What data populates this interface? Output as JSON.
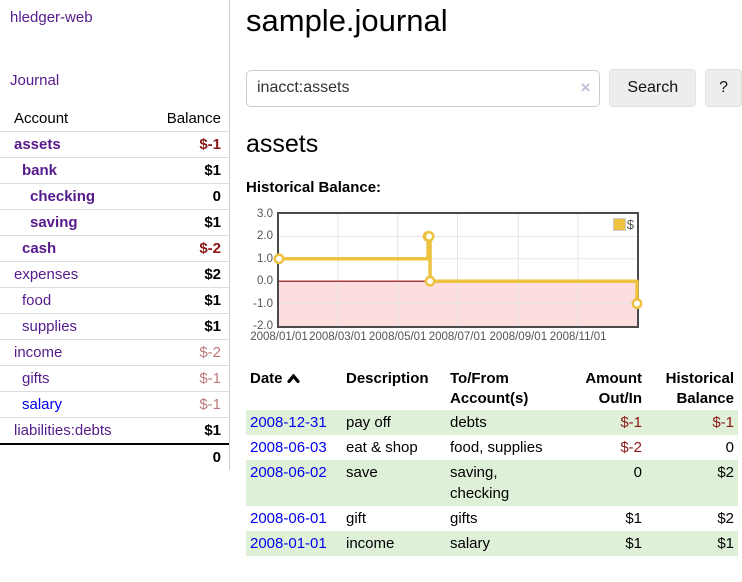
{
  "colors": {
    "link_visited_purple": "#551a8b",
    "link_blue": "#0000ee",
    "negative_strong": "#8b1717",
    "negative_light": "#bd7b7b",
    "row_green": "#dff0d8",
    "series_gold": "#edc240"
  },
  "sidebar": {
    "app_title": "hledger-web",
    "journal_link": "Journal",
    "account_header": "Account",
    "balance_header": "Balance",
    "accounts": [
      {
        "name": "assets",
        "indent": 1,
        "bold": true,
        "blue": false,
        "balance": "$-1",
        "balance_style": "neg"
      },
      {
        "name": "bank",
        "indent": 2,
        "bold": true,
        "blue": false,
        "balance": "$1",
        "balance_style": "pos"
      },
      {
        "name": "checking",
        "indent": 3,
        "bold": true,
        "blue": false,
        "balance": "0",
        "balance_style": "pos"
      },
      {
        "name": "saving",
        "indent": 3,
        "bold": true,
        "blue": false,
        "balance": "$1",
        "balance_style": "pos"
      },
      {
        "name": "cash",
        "indent": 2,
        "bold": true,
        "blue": false,
        "balance": "$-2",
        "balance_style": "neg"
      },
      {
        "name": "expenses",
        "indent": 1,
        "bold": false,
        "blue": false,
        "balance": "$2",
        "balance_style": "pos"
      },
      {
        "name": "food",
        "indent": 2,
        "bold": false,
        "blue": false,
        "balance": "$1",
        "balance_style": "pos"
      },
      {
        "name": "supplies",
        "indent": 2,
        "bold": false,
        "blue": false,
        "balance": "$1",
        "balance_style": "pos"
      },
      {
        "name": "income",
        "indent": 1,
        "bold": false,
        "blue": false,
        "balance": "$-2",
        "balance_style": "neg-light"
      },
      {
        "name": "gifts",
        "indent": 2,
        "bold": false,
        "blue": false,
        "balance": "$-1",
        "balance_style": "neg-light"
      },
      {
        "name": "salary",
        "indent": 2,
        "bold": false,
        "blue": true,
        "balance": "$-1",
        "balance_style": "neg-light"
      },
      {
        "name": "liabilities:debts",
        "indent": 1,
        "bold": false,
        "blue": false,
        "balance": "$1",
        "balance_style": "pos"
      }
    ],
    "total": "0"
  },
  "main": {
    "title": "sample.journal",
    "search": {
      "value": "inacct:assets",
      "clear_icon": "×",
      "button_label": "Search",
      "help_label": "?"
    },
    "account_heading": "assets",
    "chart_label": "Historical Balance:"
  },
  "chart_data": {
    "type": "line",
    "step": true,
    "title": "Historical Balance",
    "ylim": [
      -2,
      3
    ],
    "grid": true,
    "legend": {
      "label": "$",
      "position": "top-right"
    },
    "negative_region_color": "#fcdede",
    "zero_line_color": "#8b0000",
    "series": [
      {
        "name": "$",
        "color": "#edc240",
        "points": [
          {
            "date": "2008-01-01",
            "x": 0.0,
            "y": 1
          },
          {
            "date": "2008-06-01",
            "x": 0.4164,
            "y": 2
          },
          {
            "date": "2008-06-02",
            "x": 0.4192,
            "y": 2
          },
          {
            "date": "2008-06-03",
            "x": 0.4219,
            "y": 0
          },
          {
            "date": "2008-12-31",
            "x": 1.0,
            "y": -1
          }
        ]
      }
    ],
    "y_ticks": [
      {
        "label": "3.0",
        "value": 3
      },
      {
        "label": "2.0",
        "value": 2
      },
      {
        "label": "1.0",
        "value": 1
      },
      {
        "label": "0.0",
        "value": 0
      },
      {
        "label": "-1.0",
        "value": -1
      },
      {
        "label": "-2.0",
        "value": -2
      }
    ],
    "x_ticks": [
      {
        "label": "2008/01/01",
        "x": 0.0
      },
      {
        "label": "2008/03/01",
        "x": 0.1644
      },
      {
        "label": "2008/05/01",
        "x": 0.3315
      },
      {
        "label": "2008/07/01",
        "x": 0.4986
      },
      {
        "label": "2008/09/01",
        "x": 0.6685
      },
      {
        "label": "2008/11/01",
        "x": 0.8356
      }
    ]
  },
  "register_table": {
    "headers": {
      "date": "Date",
      "description": "Description",
      "accounts": "To/From Account(s)",
      "amount": "Amount Out/In",
      "balance": "Historical Balance"
    },
    "sort": "ascending",
    "rows": [
      {
        "date": "2008-12-31",
        "description": "pay off",
        "accounts": "debts",
        "amount": "$-1",
        "amount_negative": true,
        "balance": "$-1",
        "balance_negative": true
      },
      {
        "date": "2008-06-03",
        "description": "eat & shop",
        "accounts": "food, supplies",
        "amount": "$-2",
        "amount_negative": true,
        "balance": "0",
        "balance_negative": false
      },
      {
        "date": "2008-06-02",
        "description": "save",
        "accounts": "saving, checking",
        "amount": "0",
        "amount_negative": false,
        "balance": "$2",
        "balance_negative": false
      },
      {
        "date": "2008-06-01",
        "description": "gift",
        "accounts": "gifts",
        "amount": "$1",
        "amount_negative": false,
        "balance": "$2",
        "balance_negative": false
      },
      {
        "date": "2008-01-01",
        "description": "income",
        "accounts": "salary",
        "amount": "$1",
        "amount_negative": false,
        "balance": "$1",
        "balance_negative": false
      }
    ]
  }
}
